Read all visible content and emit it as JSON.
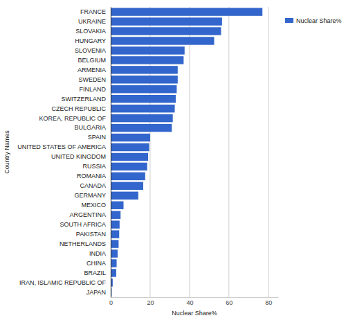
{
  "chart_data": {
    "type": "bar",
    "orientation": "horizontal",
    "x_label": "Nuclear Share%",
    "y_label": "Country Names",
    "categories": [
      "FRANCE",
      "UKRAINE",
      "SLOVAKIA",
      "HUNGARY",
      "SLOVENIA",
      "BELGIUM",
      "ARMENIA",
      "SWEDEN",
      "FINLAND",
      "SWITZERLAND",
      "CZECH REPUBLIC",
      "KOREA, REPUBLIC OF",
      "BULGARIA",
      "SPAIN",
      "UNITED STATES OF AMERICA",
      "UNITED KINGDOM",
      "RUSSIA",
      "ROMANIA",
      "CANADA",
      "GERMANY",
      "MEXICO",
      "ARGENTINA",
      "SOUTH AFRICA",
      "PAKISTAN",
      "NETHERLANDS",
      "INDIA",
      "CHINA",
      "BRAZIL",
      "IRAN, ISLAMIC REPUBLIC OF",
      "JAPAN"
    ],
    "series": [
      {
        "name": "Nuclear Share%",
        "color": "#3366cc",
        "values": [
          77,
          56.5,
          56,
          52.5,
          37.5,
          37,
          34,
          34,
          33.5,
          33,
          32.5,
          31.5,
          31,
          20,
          19.5,
          19,
          18.5,
          17.5,
          16.5,
          14,
          6.5,
          5,
          4.5,
          4.3,
          4,
          3.5,
          3,
          2.8,
          1,
          0.5
        ]
      }
    ],
    "xlim": [
      0,
      85
    ],
    "xticks": [
      0,
      20,
      40,
      60,
      80
    ],
    "grid": true,
    "legend": "top-right"
  }
}
